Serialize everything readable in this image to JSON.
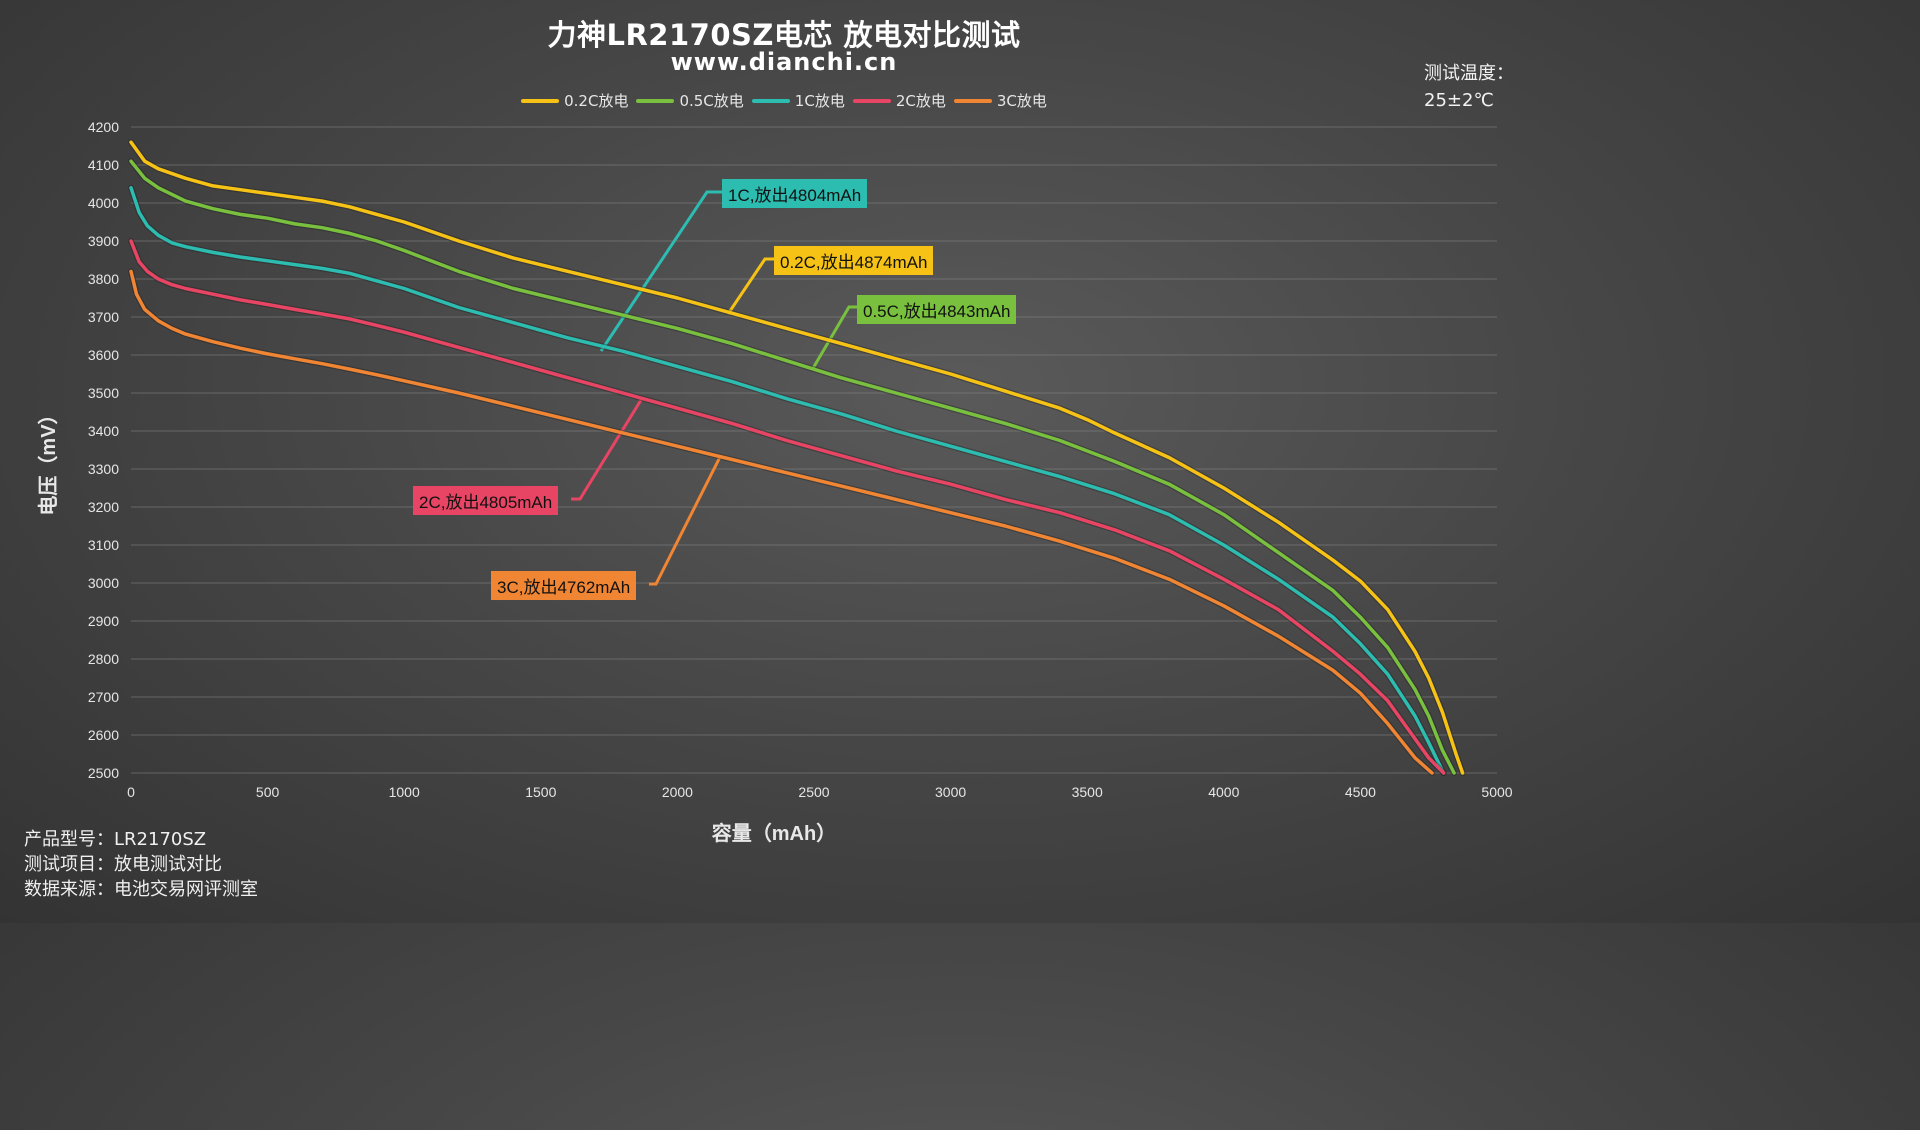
{
  "header": {
    "title": "力神LR2170SZ电芯 放电对比测试",
    "subtitle": "www.dianchi.cn",
    "temperature_label": "测试温度：",
    "temperature_value": "25±2℃"
  },
  "footer": {
    "model": "产品型号：LR2170SZ",
    "test_item": "测试项目：放电测试对比",
    "source": "数据来源：电池交易网评测室"
  },
  "callouts": [
    {
      "text": "1C,放出4804mAh",
      "series": 2
    },
    {
      "text": "0.2C,放出4874mAh",
      "series": 0
    },
    {
      "text": "0.5C,放出4843mAh",
      "series": 1
    },
    {
      "text": "2C,放出4805mAh",
      "series": 3
    },
    {
      "text": "3C,放出4762mAh",
      "series": 4
    }
  ],
  "chart_data": {
    "type": "line",
    "xlabel": "容量（mAh）",
    "ylabel": "电压（mV）",
    "xlim": [
      0,
      5000
    ],
    "ylim": [
      2500,
      4200
    ],
    "xticks": [
      0,
      500,
      1000,
      1500,
      2000,
      2500,
      3000,
      3500,
      4000,
      4500,
      5000
    ],
    "yticks": [
      2500,
      2600,
      2700,
      2800,
      2900,
      3000,
      3100,
      3200,
      3300,
      3400,
      3500,
      3600,
      3700,
      3800,
      3900,
      4000,
      4100,
      4200
    ],
    "grid": true,
    "legend_position": "top-center",
    "series": [
      {
        "name": "0.2C放电",
        "color": "#f6c215",
        "x": [
          0,
          50,
          100,
          200,
          300,
          400,
          500,
          600,
          700,
          800,
          900,
          1000,
          1200,
          1400,
          1600,
          1800,
          2000,
          2200,
          2400,
          2600,
          2800,
          3000,
          3200,
          3400,
          3500,
          3600,
          3800,
          4000,
          4200,
          4400,
          4500,
          4600,
          4700,
          4750,
          4800,
          4850,
          4874
        ],
        "y": [
          4160,
          4110,
          4090,
          4065,
          4045,
          4035,
          4025,
          4015,
          4005,
          3990,
          3970,
          3950,
          3900,
          3855,
          3820,
          3785,
          3750,
          3710,
          3670,
          3630,
          3590,
          3550,
          3505,
          3460,
          3430,
          3395,
          3330,
          3250,
          3160,
          3060,
          3005,
          2930,
          2820,
          2750,
          2660,
          2550,
          2500
        ]
      },
      {
        "name": "0.5C放电",
        "color": "#79c03e",
        "x": [
          0,
          50,
          100,
          200,
          300,
          400,
          500,
          600,
          700,
          800,
          900,
          1000,
          1200,
          1400,
          1600,
          1800,
          2000,
          2200,
          2400,
          2600,
          2800,
          3000,
          3200,
          3400,
          3600,
          3800,
          4000,
          4200,
          4400,
          4500,
          4600,
          4700,
          4750,
          4800,
          4843
        ],
        "y": [
          4110,
          4065,
          4040,
          4005,
          3985,
          3970,
          3960,
          3945,
          3935,
          3920,
          3900,
          3875,
          3820,
          3775,
          3740,
          3705,
          3670,
          3630,
          3585,
          3540,
          3500,
          3460,
          3420,
          3375,
          3320,
          3260,
          3180,
          3080,
          2980,
          2910,
          2830,
          2720,
          2650,
          2560,
          2500
        ]
      },
      {
        "name": "1C放电",
        "color": "#2cbcb0",
        "x": [
          0,
          30,
          60,
          100,
          150,
          200,
          300,
          400,
          500,
          600,
          700,
          800,
          900,
          1000,
          1200,
          1400,
          1600,
          1800,
          2000,
          2200,
          2400,
          2600,
          2800,
          3000,
          3200,
          3400,
          3600,
          3800,
          4000,
          4200,
          4400,
          4500,
          4600,
          4700,
          4750,
          4804
        ],
        "y": [
          4040,
          3975,
          3940,
          3915,
          3895,
          3885,
          3870,
          3858,
          3848,
          3838,
          3828,
          3815,
          3795,
          3775,
          3725,
          3685,
          3645,
          3610,
          3570,
          3530,
          3485,
          3445,
          3400,
          3360,
          3320,
          3280,
          3235,
          3180,
          3100,
          3010,
          2910,
          2840,
          2760,
          2650,
          2580,
          2500
        ]
      },
      {
        "name": "2C放电",
        "color": "#e84564",
        "x": [
          0,
          30,
          60,
          100,
          150,
          200,
          300,
          400,
          500,
          600,
          700,
          800,
          900,
          1000,
          1200,
          1400,
          1600,
          1800,
          2000,
          2200,
          2400,
          2600,
          2800,
          3000,
          3200,
          3400,
          3600,
          3800,
          4000,
          4200,
          4400,
          4500,
          4600,
          4700,
          4750,
          4805
        ],
        "y": [
          3900,
          3845,
          3820,
          3800,
          3785,
          3775,
          3760,
          3745,
          3733,
          3720,
          3708,
          3695,
          3678,
          3660,
          3620,
          3580,
          3540,
          3500,
          3460,
          3420,
          3375,
          3335,
          3295,
          3260,
          3220,
          3185,
          3140,
          3085,
          3010,
          2930,
          2820,
          2760,
          2690,
          2590,
          2540,
          2500
        ]
      },
      {
        "name": "3C放电",
        "color": "#f08533",
        "x": [
          0,
          20,
          50,
          100,
          150,
          200,
          300,
          400,
          500,
          600,
          700,
          800,
          900,
          1000,
          1200,
          1400,
          1600,
          1800,
          2000,
          2200,
          2400,
          2600,
          2800,
          3000,
          3200,
          3400,
          3600,
          3800,
          4000,
          4200,
          4400,
          4500,
          4600,
          4700,
          4762
        ],
        "y": [
          3820,
          3760,
          3720,
          3690,
          3670,
          3655,
          3635,
          3618,
          3603,
          3590,
          3577,
          3563,
          3548,
          3532,
          3500,
          3465,
          3430,
          3395,
          3360,
          3325,
          3290,
          3255,
          3220,
          3185,
          3150,
          3110,
          3065,
          3010,
          2940,
          2860,
          2770,
          2710,
          2630,
          2540,
          2500
        ]
      }
    ]
  }
}
